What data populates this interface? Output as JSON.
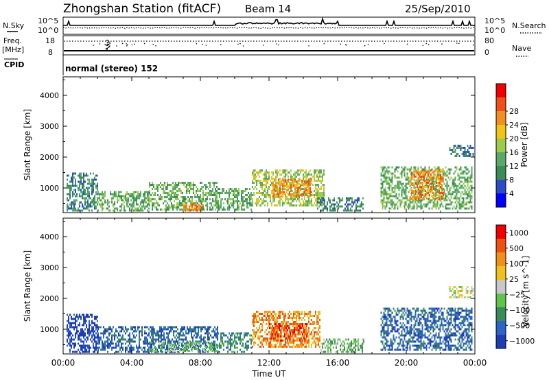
{
  "header": {
    "station": "Zhongshan Station (fitACF)",
    "beam": "Beam 14",
    "date": "25/Sep/2010"
  },
  "strip": {
    "nsky_label": "N.Sky",
    "nsky_ticks": [
      "10^5",
      "10^0"
    ],
    "nsearch_label": "N.Search",
    "nsearch_ticks": [
      "10^5",
      "10^0"
    ],
    "freq_label": "Freq.",
    "freq_unit": "[MHz]",
    "freq_ticks": [
      "18",
      "8"
    ],
    "nave_label": "Nave",
    "nave_ticks": [
      "80",
      "0"
    ],
    "cpid_label": "CPID",
    "cpid_value": "normal (stereo) 152"
  },
  "colors": {
    "power_scale": [
      "#0000ff",
      "#2b4cc8",
      "#3c8c5a",
      "#5aa86a",
      "#9ccc4a",
      "#f2c418",
      "#f09020",
      "#f05018",
      "#f00000"
    ],
    "velocity_scale": [
      "#1e3cb4",
      "#2c64c8",
      "#3a8a5a",
      "#5fc44a",
      "#c8c8c8",
      "#f0c020",
      "#f09018",
      "#f05010",
      "#f00000"
    ]
  },
  "chart_data": [
    {
      "type": "heatmap",
      "name": "power",
      "ylabel": "Slant Range [km]",
      "xlabel": "",
      "yticks": [
        1000,
        2000,
        3000,
        4000
      ],
      "ylim": [
        200,
        4600
      ],
      "xlim_hours": [
        0,
        24
      ],
      "colorbar_label": "Power [dB]",
      "colorbar_ticks": [
        "4",
        "8",
        "12",
        "16",
        "20",
        "24",
        "28"
      ],
      "colorbar_range": [
        0,
        32
      ],
      "regions": [
        {
          "t0": 0.2,
          "t1": 2.0,
          "r0": 280,
          "r1": 1500,
          "c": 2
        },
        {
          "t0": 2.0,
          "t1": 5.0,
          "r0": 280,
          "r1": 900,
          "c": 3
        },
        {
          "t0": 5.0,
          "t1": 9.0,
          "r0": 280,
          "r1": 1200,
          "c": 3
        },
        {
          "t0": 7.0,
          "t1": 8.2,
          "r0": 280,
          "r1": 500,
          "c": 6
        },
        {
          "t0": 9.0,
          "t1": 11.0,
          "r0": 280,
          "r1": 1000,
          "c": 3
        },
        {
          "t0": 11.0,
          "t1": 15.2,
          "r0": 400,
          "r1": 1600,
          "c": 4
        },
        {
          "t0": 12.2,
          "t1": 14.5,
          "r0": 700,
          "r1": 1300,
          "c": 6
        },
        {
          "t0": 14.8,
          "t1": 17.5,
          "r0": 280,
          "r1": 700,
          "c": 2
        },
        {
          "t0": 18.5,
          "t1": 23.8,
          "r0": 300,
          "r1": 1700,
          "c": 3
        },
        {
          "t0": 20.2,
          "t1": 22.2,
          "r0": 600,
          "r1": 1600,
          "c": 6
        },
        {
          "t0": 22.5,
          "t1": 23.9,
          "r0": 2000,
          "r1": 2400,
          "c": 2
        }
      ]
    },
    {
      "type": "heatmap",
      "name": "velocity",
      "ylabel": "Slant Range [km]",
      "xlabel": "Time UT",
      "yticks": [
        1000,
        2000,
        3000,
        4000
      ],
      "ylim": [
        200,
        4600
      ],
      "xlim_hours": [
        0,
        24
      ],
      "xticks": [
        "00:00",
        "04:00",
        "08:00",
        "12:00",
        "16:00",
        "20:00",
        "00:00"
      ],
      "colorbar_label": "Velocity [m s^-1]",
      "colorbar_ticks": [
        "1000",
        "500",
        "100",
        "25",
        "−25",
        "−100",
        "−500",
        "−1000"
      ],
      "regions": [
        {
          "t0": 0.2,
          "t1": 2.0,
          "r0": 280,
          "r1": 1500,
          "c": 0
        },
        {
          "t0": 2.0,
          "t1": 9.0,
          "r0": 280,
          "r1": 1100,
          "c": 1
        },
        {
          "t0": 5.0,
          "t1": 9.0,
          "r0": 280,
          "r1": 600,
          "c": 3
        },
        {
          "t0": 9.0,
          "t1": 11.0,
          "r0": 280,
          "r1": 900,
          "c": 2
        },
        {
          "t0": 11.0,
          "t1": 15.0,
          "r0": 400,
          "r1": 1600,
          "c": 6
        },
        {
          "t0": 12.0,
          "t1": 14.2,
          "r0": 600,
          "r1": 1200,
          "c": 7
        },
        {
          "t0": 15.0,
          "t1": 17.5,
          "r0": 280,
          "r1": 700,
          "c": 3
        },
        {
          "t0": 18.5,
          "t1": 23.8,
          "r0": 300,
          "r1": 1700,
          "c": 1
        },
        {
          "t0": 22.5,
          "t1": 23.9,
          "r0": 2000,
          "r1": 2400,
          "c": 4
        }
      ]
    }
  ]
}
